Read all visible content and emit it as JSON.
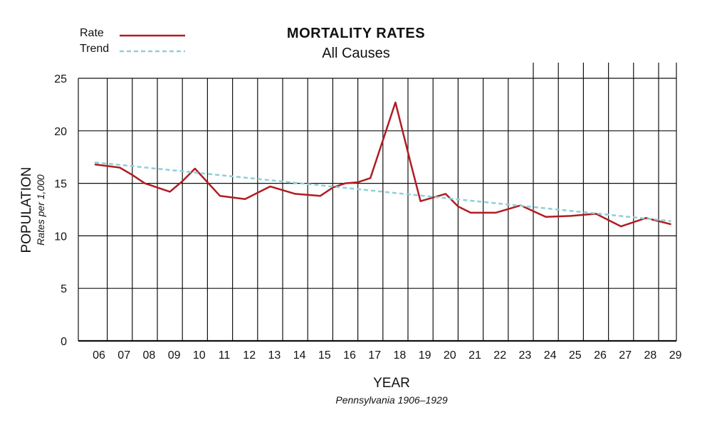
{
  "chart_data": {
    "type": "line",
    "title": "MORTALITY RATES",
    "subtitle": "All Causes",
    "xlabel": "YEAR",
    "xlabel_note": "Pennsylvania 1906–1929",
    "ylabel": "POPULATION",
    "ylabel_sub": "Rates per 1,000",
    "categories": [
      "06",
      "07",
      "08",
      "09",
      "10",
      "11",
      "12",
      "13",
      "14",
      "15",
      "16",
      "17",
      "18",
      "19",
      "20",
      "21",
      "22",
      "23",
      "24",
      "25",
      "26",
      "27",
      "28",
      "29"
    ],
    "yticks": [
      0,
      5,
      10,
      15,
      20,
      25
    ],
    "ylim": [
      0,
      25
    ],
    "grid": true,
    "legend_position": "top-left",
    "series": [
      {
        "name": "Rate",
        "color": "#b01c22",
        "style": "solid",
        "x": [
          1906,
          1907,
          1907.5,
          1908,
          1909,
          1909.5,
          1910,
          1911,
          1912,
          1913,
          1914,
          1915,
          1915.5,
          1916,
          1916.5,
          1917,
          1918,
          1918.6,
          1919,
          1920,
          1920.5,
          1921,
          1922,
          1923,
          1924,
          1925,
          1926,
          1927,
          1928,
          1929
        ],
        "values": [
          16.8,
          16.5,
          15.8,
          15.0,
          14.2,
          15.2,
          16.4,
          13.8,
          13.5,
          14.7,
          14.0,
          13.8,
          14.6,
          15.0,
          15.1,
          15.5,
          22.7,
          17.0,
          13.3,
          14.0,
          12.8,
          12.2,
          12.2,
          12.9,
          11.8,
          11.9,
          12.1,
          10.9,
          11.7,
          11.1
        ]
      },
      {
        "name": "Trend",
        "color": "#8fcfd8",
        "style": "dashed",
        "x": [
          1906,
          1929
        ],
        "values": [
          17.0,
          11.4
        ]
      }
    ]
  }
}
